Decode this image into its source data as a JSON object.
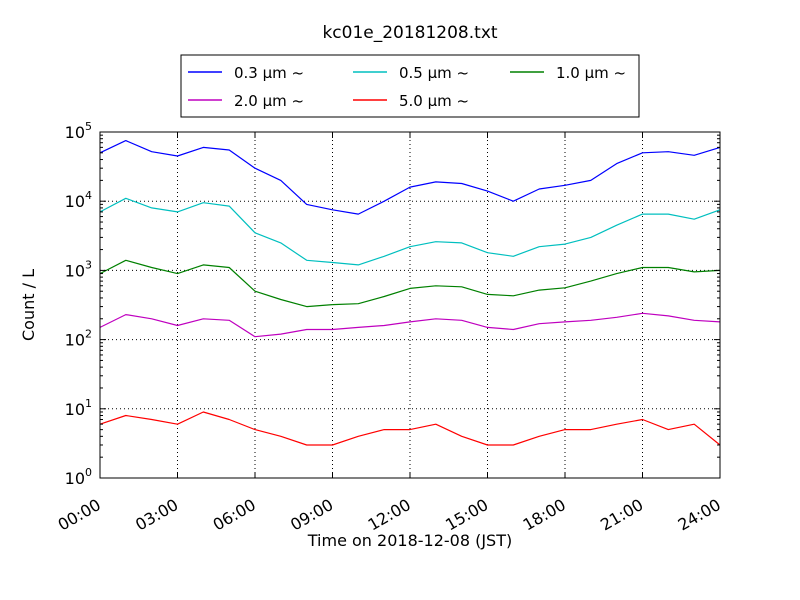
{
  "chart_data": {
    "type": "line",
    "title": "kc01e_20181208.txt",
    "xlabel": "Time on 2018-12-08 (JST)",
    "ylabel": "Count / L",
    "yscale": "log",
    "ylim": [
      1,
      100000
    ],
    "xlim": [
      "00:00",
      "24:00"
    ],
    "grid": true,
    "legend_position": "top-center",
    "x_ticks": [
      "00:00",
      "03:00",
      "06:00",
      "09:00",
      "12:00",
      "15:00",
      "18:00",
      "21:00",
      "24:00"
    ],
    "y_ticks": [
      {
        "base": "10",
        "exp": "0",
        "value": 1
      },
      {
        "base": "10",
        "exp": "1",
        "value": 10
      },
      {
        "base": "10",
        "exp": "2",
        "value": 100
      },
      {
        "base": "10",
        "exp": "3",
        "value": 1000
      },
      {
        "base": "10",
        "exp": "4",
        "value": 10000
      },
      {
        "base": "10",
        "exp": "5",
        "value": 100000
      }
    ],
    "x_hours": [
      0,
      1,
      2,
      3,
      4,
      5,
      6,
      7,
      8,
      9,
      10,
      11,
      12,
      13,
      14,
      15,
      16,
      17,
      18,
      19,
      20,
      21,
      22,
      23,
      24
    ],
    "series": [
      {
        "name": "0.3 μm ~",
        "color": "#0000ff",
        "values": [
          50000,
          75000,
          52000,
          45000,
          60000,
          55000,
          30000,
          20000,
          9000,
          7500,
          6500,
          10000,
          16000,
          19000,
          18000,
          14000,
          10000,
          15000,
          17000,
          20000,
          35000,
          50000,
          52000,
          46000,
          60000
        ]
      },
      {
        "name": "0.5 μm ~",
        "color": "#00bfbf",
        "values": [
          7000,
          11000,
          8000,
          7000,
          9500,
          8500,
          3500,
          2500,
          1400,
          1300,
          1200,
          1600,
          2200,
          2600,
          2500,
          1800,
          1600,
          2200,
          2400,
          3000,
          4500,
          6500,
          6500,
          5500,
          7500
        ]
      },
      {
        "name": "1.0 μm ~",
        "color": "#008000",
        "values": [
          900,
          1400,
          1100,
          900,
          1200,
          1100,
          500,
          380,
          300,
          320,
          330,
          420,
          550,
          600,
          580,
          450,
          430,
          520,
          560,
          700,
          900,
          1100,
          1100,
          950,
          1000
        ]
      },
      {
        "name": "2.0 μm ~",
        "color": "#bf00bf",
        "values": [
          150,
          230,
          200,
          160,
          200,
          190,
          110,
          120,
          140,
          140,
          150,
          160,
          180,
          200,
          190,
          150,
          140,
          170,
          180,
          190,
          210,
          240,
          220,
          190,
          180
        ]
      },
      {
        "name": "5.0 μm ~",
        "color": "#ff0000",
        "values": [
          6,
          8,
          7,
          6,
          9,
          7,
          5,
          4,
          3,
          3,
          4,
          5,
          5,
          6,
          4,
          3,
          3,
          4,
          5,
          5,
          6,
          7,
          5,
          6,
          3
        ]
      }
    ]
  }
}
